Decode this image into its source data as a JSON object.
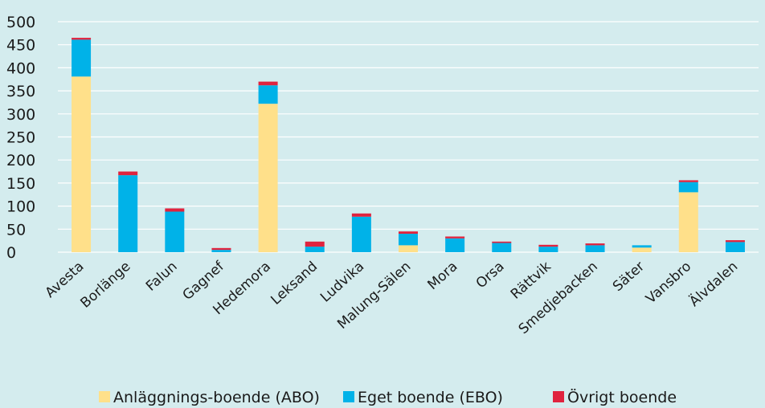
{
  "chart_data": {
    "type": "bar",
    "stacked": true,
    "categories": [
      "Avesta",
      "Borlänge",
      "Falun",
      "Gagnef",
      "Hedemora",
      "Leksand",
      "Ludvika",
      "Malung-Sälen",
      "Mora",
      "Orsa",
      "Rättvik",
      "Smedjebacken",
      "Säter",
      "Vansbro",
      "Älvdalen"
    ],
    "series": [
      {
        "name": "Anläggnings-boende (ABO)",
        "color": "#ffe08a",
        "values": [
          381,
          0,
          0,
          0,
          322,
          0,
          0,
          15,
          0,
          0,
          0,
          0,
          10,
          130,
          0
        ]
      },
      {
        "name": "Eget boende (EBO)",
        "color": "#00b2e8",
        "values": [
          80,
          167,
          88,
          5,
          40,
          12,
          77,
          25,
          30,
          20,
          12,
          15,
          5,
          22,
          22
        ]
      },
      {
        "name": "Övrigt boende",
        "color": "#e0233e",
        "values": [
          4,
          8,
          7,
          4,
          8,
          11,
          7,
          5,
          4,
          3,
          4,
          4,
          0,
          4,
          4
        ]
      }
    ],
    "ylim": [
      0,
      500
    ],
    "yticks": [
      0,
      50,
      100,
      150,
      200,
      250,
      300,
      350,
      400,
      450,
      500
    ],
    "grid": true,
    "legend_position": "bottom"
  }
}
